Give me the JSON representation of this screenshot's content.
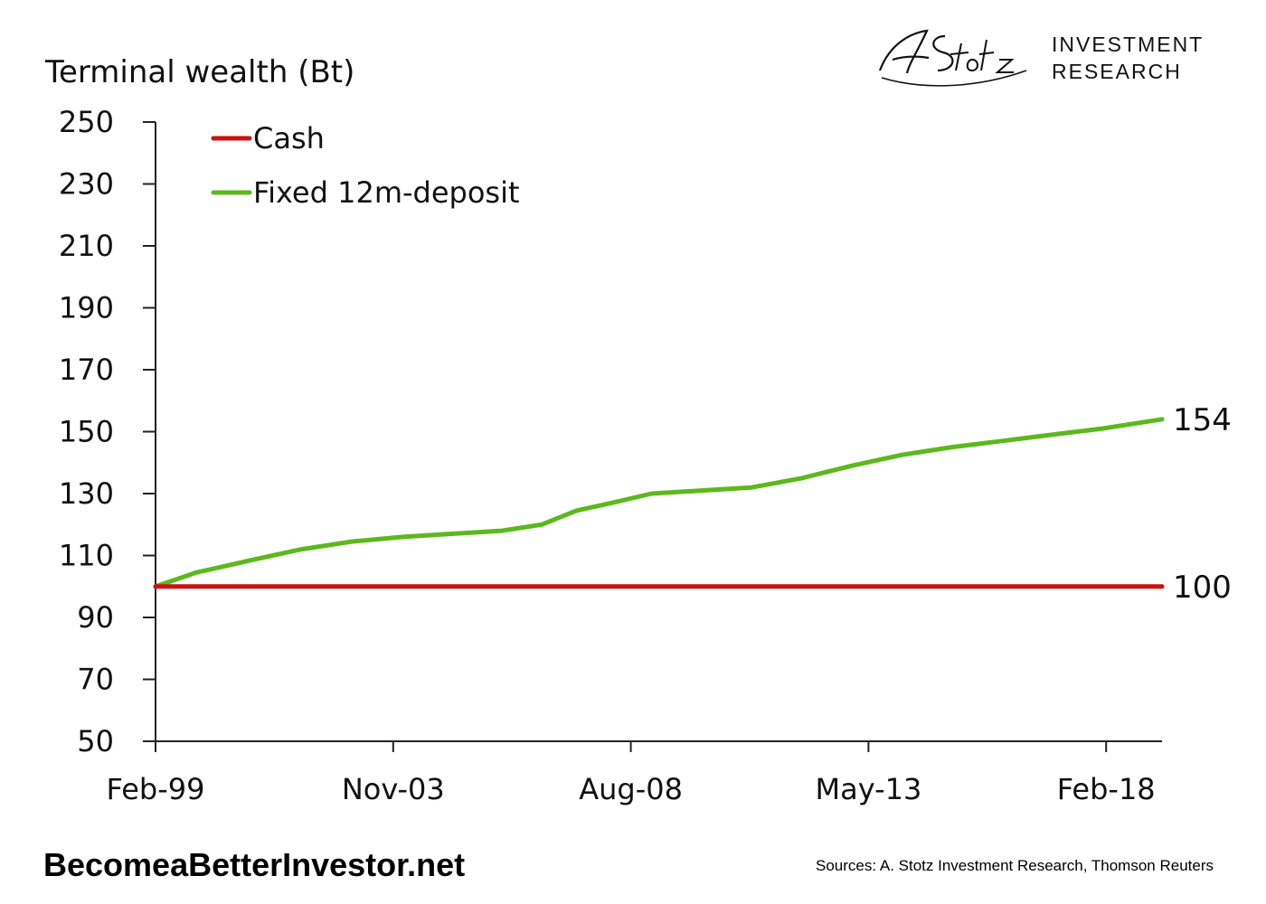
{
  "branding": {
    "logo_signature": "A. Stotz",
    "logo_line1": "INVESTMENT",
    "logo_line2": "RESEARCH"
  },
  "footer": {
    "website": "BecomeaBetterInvestor.net",
    "sources": "Sources: A. Stotz Investment Research, Thomson Reuters"
  },
  "chart_data": {
    "type": "line",
    "ylabel": "Terminal wealth (Bt)",
    "xlabel": "",
    "ylim": [
      50,
      250
    ],
    "yticks": [
      50,
      70,
      90,
      110,
      130,
      150,
      170,
      190,
      210,
      230,
      250
    ],
    "xlim": [
      1999.083,
      2019.2
    ],
    "xticks": [
      {
        "label": "Feb-99",
        "x": 1999.083
      },
      {
        "label": "Nov-03",
        "x": 2003.833
      },
      {
        "label": "Aug-08",
        "x": 2008.583
      },
      {
        "label": "May-13",
        "x": 2013.333
      },
      {
        "label": "Feb-18",
        "x": 2018.083
      }
    ],
    "grid": false,
    "legend_position": "top-left",
    "series": [
      {
        "name": "Cash",
        "color": "#cc1111",
        "end_label": "100",
        "x": [
          1999.083,
          2019.2
        ],
        "y": [
          100,
          100
        ]
      },
      {
        "name": "Fixed 12m-deposit",
        "color": "#5cb81e",
        "end_label": "154",
        "x": [
          1999.083,
          1999.9,
          2001.0,
          2002.0,
          2003.0,
          2004.0,
          2005.0,
          2006.0,
          2006.8,
          2007.5,
          2008.2,
          2009.0,
          2010.0,
          2011.0,
          2012.0,
          2013.0,
          2014.0,
          2015.0,
          2016.0,
          2017.0,
          2018.0,
          2019.2
        ],
        "y": [
          100,
          104.5,
          108.5,
          112,
          114.5,
          116,
          117,
          118,
          120,
          124.5,
          127,
          130,
          131,
          132,
          135,
          139,
          142.5,
          145,
          147,
          149,
          151,
          154
        ]
      }
    ]
  }
}
